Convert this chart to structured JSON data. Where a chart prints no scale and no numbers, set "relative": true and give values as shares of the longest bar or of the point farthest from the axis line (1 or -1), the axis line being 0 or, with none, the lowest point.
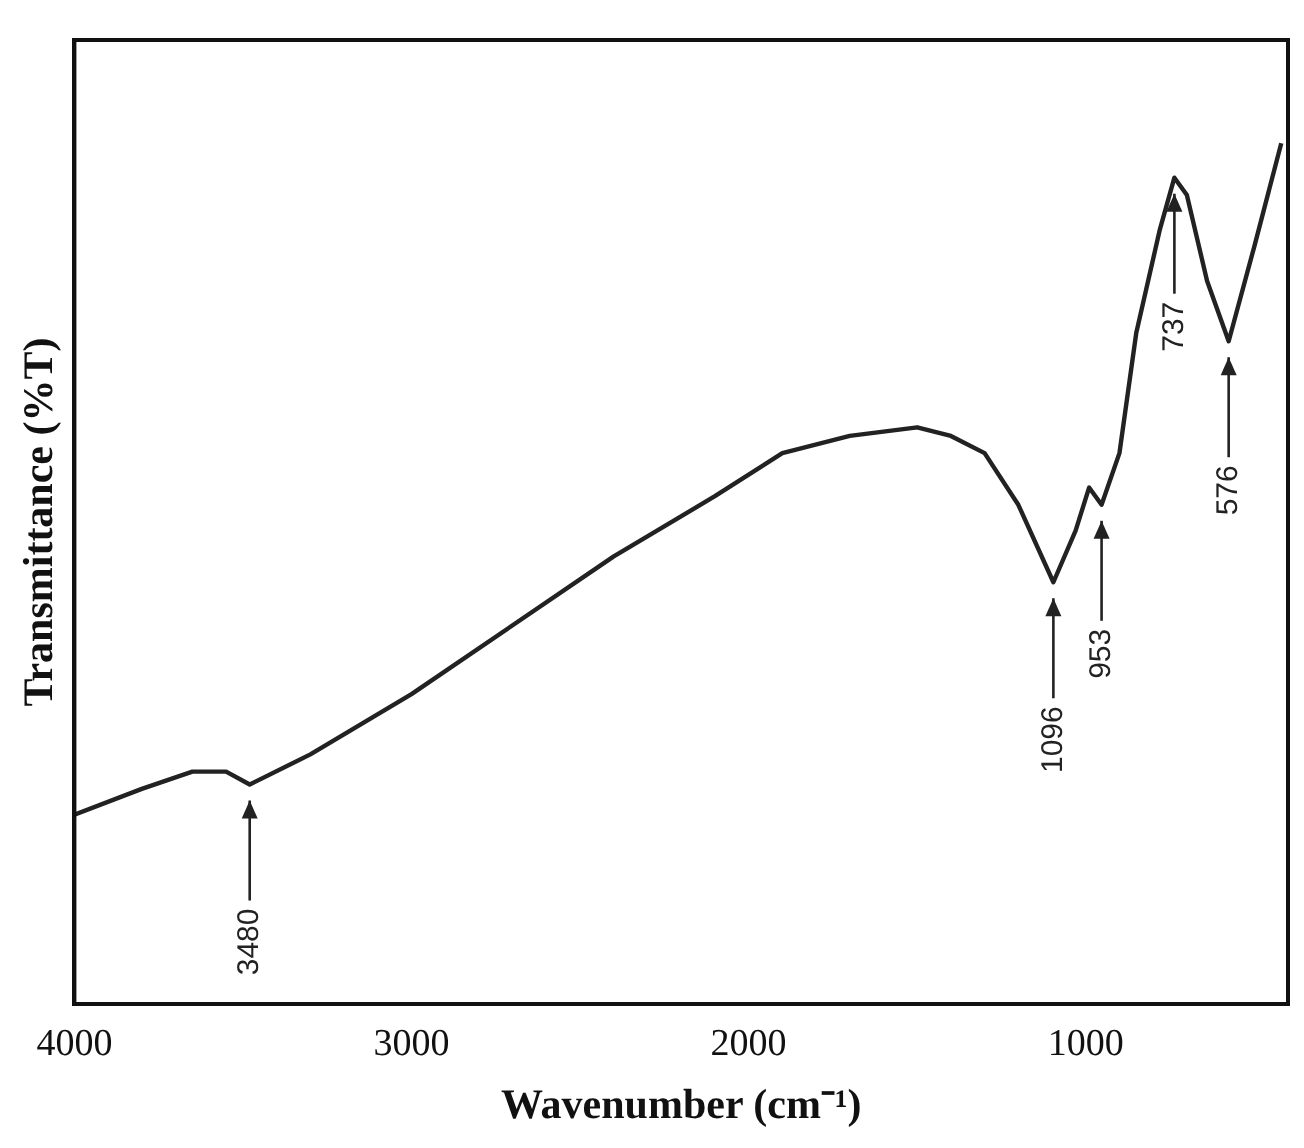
{
  "chart_data": {
    "type": "line",
    "xlabel": "Wavenumber (cm⁻¹)",
    "ylabel": "Transmittance (%T)",
    "relative": true,
    "tick_labels": "x",
    "grid": false,
    "legend": false,
    "marker": "none",
    "line_style": "solid",
    "x": [
      4000,
      3800,
      3650,
      3550,
      3480,
      3300,
      3000,
      2700,
      2400,
      2100,
      1900,
      1700,
      1500,
      1400,
      1300,
      1200,
      1096,
      1030,
      990,
      953,
      900,
      850,
      780,
      737,
      700,
      640,
      576,
      500,
      420
    ],
    "xlim": [
      4000,
      400
    ],
    "xticks": [
      4000,
      3000,
      2000,
      1000
    ],
    "series": [
      {
        "color": "#222222",
        "values": [
          0.22,
          0.25,
          0.27,
          0.27,
          0.255,
          0.29,
          0.36,
          0.44,
          0.52,
          0.59,
          0.64,
          0.66,
          0.67,
          0.66,
          0.64,
          0.58,
          0.49,
          0.55,
          0.6,
          0.58,
          0.64,
          0.78,
          0.9,
          0.96,
          0.94,
          0.84,
          0.77,
          0.88,
          1.0
        ]
      }
    ],
    "annotations": [
      {
        "text": "3480",
        "x": 3480,
        "y": 0.255
      },
      {
        "text": "1096",
        "x": 1096,
        "y": 0.49
      },
      {
        "text": "953",
        "x": 953,
        "y": 0.58
      },
      {
        "text": "737",
        "x": 737,
        "y": 0.96
      },
      {
        "text": "576",
        "x": 576,
        "y": 0.77
      }
    ]
  }
}
